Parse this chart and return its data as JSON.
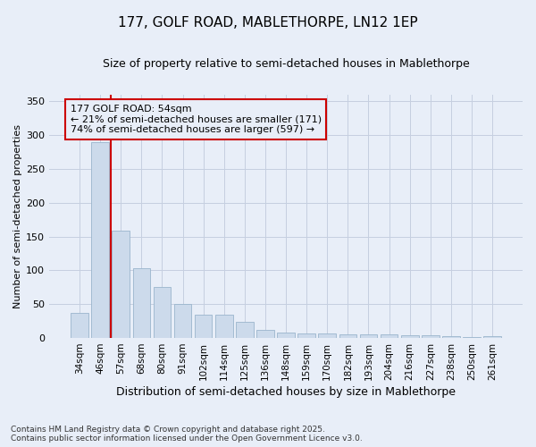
{
  "title_line1": "177, GOLF ROAD, MABLETHORPE, LN12 1EP",
  "title_line2": "Size of property relative to semi-detached houses in Mablethorpe",
  "xlabel": "Distribution of semi-detached houses by size in Mablethorpe",
  "ylabel": "Number of semi-detached properties",
  "categories": [
    "34sqm",
    "46sqm",
    "57sqm",
    "68sqm",
    "80sqm",
    "91sqm",
    "102sqm",
    "114sqm",
    "125sqm",
    "136sqm",
    "148sqm",
    "159sqm",
    "170sqm",
    "182sqm",
    "193sqm",
    "204sqm",
    "216sqm",
    "227sqm",
    "238sqm",
    "250sqm",
    "261sqm"
  ],
  "values": [
    37,
    290,
    158,
    103,
    76,
    50,
    34,
    34,
    24,
    12,
    8,
    7,
    7,
    6,
    6,
    5,
    4,
    4,
    3,
    1,
    3
  ],
  "bar_color": "#ccdaeb",
  "bar_edge_color": "#9ab5cc",
  "grid_color": "#c5cfe0",
  "background_color": "#e8eef8",
  "vline_color": "#cc0000",
  "vline_x": 1.5,
  "annotation_text": "177 GOLF ROAD: 54sqm\n← 21% of semi-detached houses are smaller (171)\n74% of semi-detached houses are larger (597) →",
  "annotation_box_edge_color": "#cc0000",
  "footnote_line1": "Contains HM Land Registry data © Crown copyright and database right 2025.",
  "footnote_line2": "Contains public sector information licensed under the Open Government Licence v3.0.",
  "ylim": [
    0,
    360
  ],
  "yticks": [
    0,
    50,
    100,
    150,
    200,
    250,
    300,
    350
  ],
  "title1_fontsize": 11,
  "title2_fontsize": 9,
  "ylabel_fontsize": 8,
  "xlabel_fontsize": 9,
  "tick_fontsize": 7.5,
  "ytick_fontsize": 8,
  "annot_fontsize": 8,
  "footnote_fontsize": 6.5
}
